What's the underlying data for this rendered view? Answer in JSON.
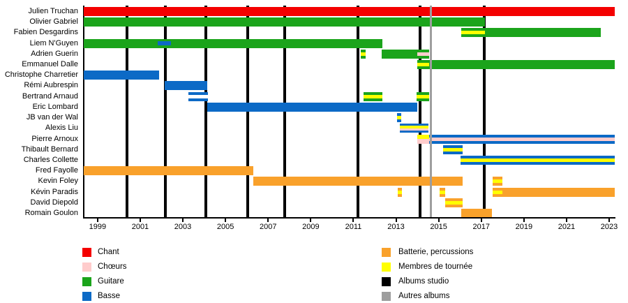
{
  "chart_data": {
    "type": "timeline",
    "title": "",
    "xlabel": "",
    "ylabel": "",
    "x_axis": {
      "min": 1998.35,
      "max": 2023.26,
      "tick_years": [
        1999,
        2001,
        2003,
        2005,
        2007,
        2009,
        2011,
        2013,
        2015,
        2017,
        2019,
        2021,
        2023
      ]
    },
    "colors": {
      "chant": "#f40000",
      "choeurs": "#ffcccc",
      "guitare": "#1ba41b",
      "basse": "#0c6ac6",
      "batterie": "#f9a12b",
      "tournee": "#ffff00",
      "studio": "#000000",
      "autres": "#9e9e9e",
      "blank": "#ffffff"
    },
    "legend": {
      "left": [
        {
          "label": "Chant",
          "key": "chant"
        },
        {
          "label": "Chœurs",
          "key": "choeurs"
        },
        {
          "label": "Guitare",
          "key": "guitare"
        },
        {
          "label": "Basse",
          "key": "basse"
        }
      ],
      "right": [
        {
          "label": "Batterie, percussions",
          "key": "batterie"
        },
        {
          "label": "Membres de tournée",
          "key": "tournee"
        },
        {
          "label": "Albums studio",
          "key": "studio"
        },
        {
          "label": "Autres albums",
          "key": "autres"
        }
      ]
    },
    "album_lines": {
      "studio": [
        2000.38,
        2002.18,
        2004.08,
        2006.04,
        2007.78,
        2011.21,
        2014.13,
        2017.13
      ],
      "autres": [
        2014.62
      ]
    },
    "members": [
      {
        "name": "Julien Truchan",
        "segments": [
          {
            "from": 1998.35,
            "to": 2023.26,
            "layers": [
              "chant"
            ]
          }
        ]
      },
      {
        "name": "Olivier Gabriel",
        "segments": [
          {
            "from": 1998.35,
            "to": 2017.17,
            "layers": [
              "guitare"
            ]
          }
        ]
      },
      {
        "name": "Fabien Desgardins",
        "segments": [
          {
            "from": 2016.05,
            "to": 2017.17,
            "layers": [
              "guitare",
              "tournee",
              "guitare"
            ]
          },
          {
            "from": 2017.17,
            "to": 2022.6,
            "layers": [
              "guitare"
            ]
          }
        ]
      },
      {
        "name": "Liem N'Guyen",
        "segments": [
          {
            "from": 1998.35,
            "to": 2012.36,
            "layers": [
              "guitare"
            ]
          },
          {
            "from": 2001.82,
            "to": 2002.44,
            "layers": [
              "basse"
            ],
            "inset": true
          }
        ]
      },
      {
        "name": "Adrien Guerin",
        "segments": [
          {
            "from": 2011.34,
            "to": 2011.57,
            "layers": [
              "guitare",
              "tournee",
              "guitare"
            ]
          },
          {
            "from": 2012.33,
            "to": 2013.99,
            "layers": [
              "guitare"
            ]
          },
          {
            "from": 2013.99,
            "to": 2014.55,
            "layers": [
              "guitare",
              "choeurs",
              "guitare"
            ]
          }
        ]
      },
      {
        "name": "Emmanuel Dalle",
        "segments": [
          {
            "from": 2013.99,
            "to": 2014.55,
            "layers": [
              "guitare",
              "tournee",
              "guitare"
            ]
          },
          {
            "from": 2014.55,
            "to": 2023.26,
            "layers": [
              "guitare"
            ]
          }
        ]
      },
      {
        "name": "Christophe Charretier",
        "segments": [
          {
            "from": 1998.35,
            "to": 2001.89,
            "layers": [
              "basse"
            ]
          }
        ]
      },
      {
        "name": "Rémi Aubrespin",
        "segments": [
          {
            "from": 2002.15,
            "to": 2004.14,
            "layers": [
              "basse"
            ]
          }
        ]
      },
      {
        "name": "Bertrand Arnaud",
        "segments": [
          {
            "from": 2003.26,
            "to": 2004.18,
            "layers": [
              "basse",
              "blank",
              "basse"
            ]
          },
          {
            "from": 2011.47,
            "to": 2012.36,
            "layers": [
              "guitare",
              "tournee",
              "guitare"
            ]
          },
          {
            "from": 2013.96,
            "to": 2014.55,
            "layers": [
              "guitare",
              "tournee",
              "guitare"
            ]
          }
        ]
      },
      {
        "name": "Eric Lombard",
        "segments": [
          {
            "from": 2004.14,
            "to": 2013.99,
            "layers": [
              "basse"
            ]
          }
        ]
      },
      {
        "name": "JB van der Wal",
        "segments": [
          {
            "from": 2013.05,
            "to": 2013.24,
            "layers": [
              "basse",
              "tournee",
              "basse"
            ]
          }
        ]
      },
      {
        "name": "Alexis Liu",
        "segments": [
          {
            "from": 2013.18,
            "to": 2014.52,
            "layers": [
              "basse",
              "tournee",
              "choeurs",
              "basse"
            ]
          }
        ]
      },
      {
        "name": "Pierre Arnoux",
        "segments": [
          {
            "from": 2013.99,
            "to": 2014.55,
            "layers": [
              "tournee",
              "choeurs"
            ]
          },
          {
            "from": 2014.55,
            "to": 2023.26,
            "layers": [
              "basse",
              "choeurs",
              "basse"
            ]
          }
        ]
      },
      {
        "name": "Thibault Bernard",
        "segments": [
          {
            "from": 2015.21,
            "to": 2016.12,
            "layers": [
              "basse",
              "tournee",
              "basse"
            ]
          }
        ]
      },
      {
        "name": "Charles Collette",
        "segments": [
          {
            "from": 2016.02,
            "to": 2023.26,
            "layers": [
              "basse",
              "tournee",
              "basse"
            ]
          }
        ]
      },
      {
        "name": "Fred Fayolle",
        "segments": [
          {
            "from": 1998.35,
            "to": 2006.29,
            "layers": [
              "batterie"
            ]
          }
        ]
      },
      {
        "name": "Kevin Foley",
        "segments": [
          {
            "from": 2006.29,
            "to": 2016.12,
            "layers": [
              "batterie"
            ]
          },
          {
            "from": 2017.52,
            "to": 2017.98,
            "layers": [
              "batterie",
              "tournee",
              "batterie"
            ]
          }
        ]
      },
      {
        "name": "Kévin Paradis",
        "segments": [
          {
            "from": 2013.08,
            "to": 2013.27,
            "layers": [
              "batterie",
              "tournee",
              "batterie"
            ]
          },
          {
            "from": 2015.04,
            "to": 2015.3,
            "layers": [
              "batterie",
              "tournee",
              "batterie"
            ]
          },
          {
            "from": 2017.52,
            "to": 2017.98,
            "layers": [
              "batterie",
              "tournee",
              "batterie"
            ]
          },
          {
            "from": 2017.98,
            "to": 2023.26,
            "layers": [
              "batterie"
            ]
          }
        ]
      },
      {
        "name": "David Diepold",
        "segments": [
          {
            "from": 2015.3,
            "to": 2016.12,
            "layers": [
              "batterie",
              "tournee",
              "batterie"
            ]
          }
        ]
      },
      {
        "name": "Romain Goulon",
        "segments": [
          {
            "from": 2016.05,
            "to": 2017.49,
            "layers": [
              "batterie"
            ]
          }
        ]
      }
    ]
  }
}
